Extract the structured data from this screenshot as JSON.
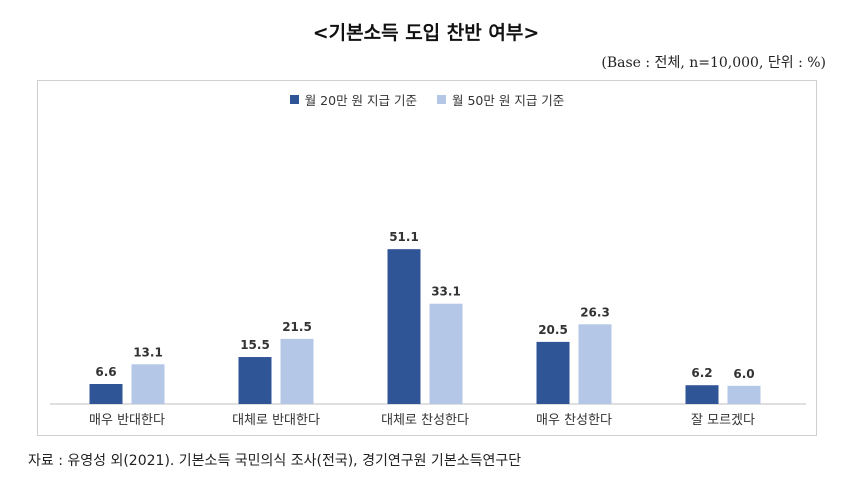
{
  "page": {
    "title": "<기본소득 도입 찬반 여부>",
    "base_note": "(Base : 전체, n=10,000, 단위 : %)",
    "source": "자료 : 유영성 외(2021). 기본소득 국민의식 조사(전국), 경기연구원 기본소득연구단"
  },
  "colors": {
    "series_dark": "#2f5597",
    "series_light": "#b4c7e7"
  },
  "chart_data": {
    "type": "bar",
    "title": "<기본소득 도입 찬반 여부>",
    "xlabel": "",
    "ylabel": "",
    "ylim": [
      0,
      55
    ],
    "grid": false,
    "legend_position": "top-center",
    "categories": [
      "매우 반대한다",
      "대체로 반대한다",
      "대체로 찬성한다",
      "매우 찬성한다",
      "잘 모르겠다"
    ],
    "series": [
      {
        "name": "월 20만 원 지급 기준",
        "values": [
          6.6,
          15.5,
          51.1,
          20.5,
          6.2
        ],
        "labels": [
          "6.6",
          "15.5",
          "51.1",
          "20.5",
          "6.2"
        ]
      },
      {
        "name": "월 50만 원 지급 기준",
        "values": [
          13.1,
          21.5,
          33.1,
          26.3,
          6.0
        ],
        "labels": [
          "13.1",
          "21.5",
          "33.1",
          "26.3",
          "6.0"
        ]
      }
    ]
  }
}
